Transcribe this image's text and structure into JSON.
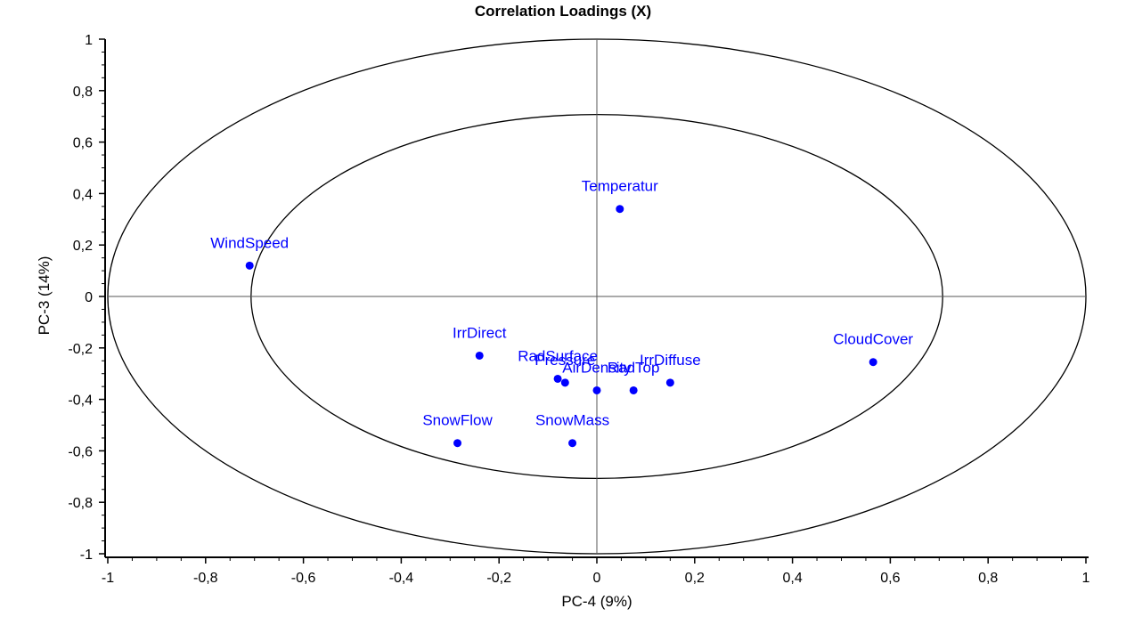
{
  "chart_data": {
    "type": "scatter",
    "title": "Correlation Loadings (X)",
    "xlabel": "PC-4 (9%)",
    "ylabel": "PC-3 (14%)",
    "xlim": [
      -1,
      1
    ],
    "ylim": [
      -1,
      1
    ],
    "x_ticks": [
      "-1",
      "-0,8",
      "-0,6",
      "-0,4",
      "-0,2",
      "0",
      "0,2",
      "0,4",
      "0,6",
      "0,8",
      "1"
    ],
    "y_ticks": [
      "1",
      "0,8",
      "0,6",
      "0,4",
      "0,2",
      "0",
      "-0,2",
      "-0,4",
      "-0,6",
      "-0,8",
      "-1"
    ],
    "reference_ellipses": [
      1.0,
      0.7071
    ],
    "point_color": "#0000ff",
    "points": [
      {
        "label": "Temperatur",
        "x": 0.047,
        "y": 0.34
      },
      {
        "label": "WindSpeed",
        "x": -0.71,
        "y": 0.12
      },
      {
        "label": "IrrDirect",
        "x": -0.24,
        "y": -0.23
      },
      {
        "label": "RadSurface",
        "x": -0.08,
        "y": -0.32
      },
      {
        "label": "Pressure",
        "x": -0.065,
        "y": -0.335
      },
      {
        "label": "AirDensity",
        "x": 0.0,
        "y": -0.365
      },
      {
        "label": "RadTop",
        "x": 0.075,
        "y": -0.365
      },
      {
        "label": "IrrDiffuse",
        "x": 0.15,
        "y": -0.335
      },
      {
        "label": "CloudCover",
        "x": 0.565,
        "y": -0.255
      },
      {
        "label": "SnowFlow",
        "x": -0.285,
        "y": -0.57
      },
      {
        "label": "SnowMass",
        "x": -0.05,
        "y": -0.57
      }
    ]
  }
}
